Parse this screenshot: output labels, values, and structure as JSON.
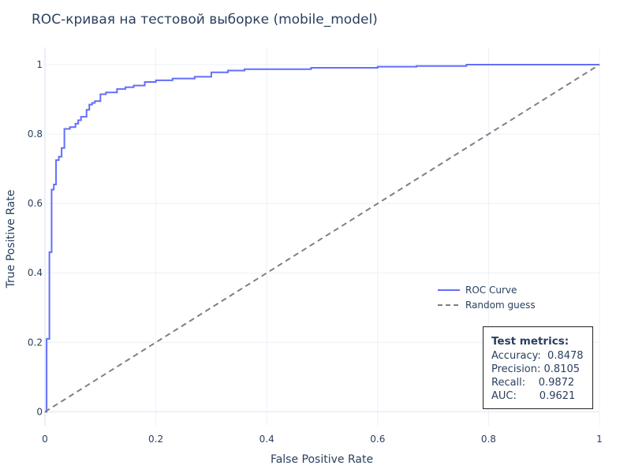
{
  "chart_data": {
    "type": "line",
    "title": "ROC-кривая на тестовой выборке (mobile_model)",
    "xlabel": "False Positive Rate",
    "ylabel": "True Positive Rate",
    "xlim": [
      0,
      1
    ],
    "ylim": [
      -0.04,
      1.05
    ],
    "x_ticks": [
      0,
      0.2,
      0.4,
      0.6,
      0.8,
      1
    ],
    "x_tick_labels": [
      "0",
      "0.2",
      "0.4",
      "0.6",
      "0.8",
      "1"
    ],
    "y_ticks": [
      0,
      0.2,
      0.4,
      0.6,
      0.8,
      1
    ],
    "y_tick_labels": [
      "0",
      "0.2",
      "0.4",
      "0.6",
      "0.8",
      "1"
    ],
    "grid": true,
    "legend_position": "right",
    "series": [
      {
        "name": "ROC Curve",
        "color": "#636efa",
        "style": "step",
        "x": [
          0,
          0.003,
          0.003,
          0.008,
          0.008,
          0.012,
          0.012,
          0.016,
          0.016,
          0.02,
          0.02,
          0.025,
          0.025,
          0.03,
          0.03,
          0.035,
          0.035,
          0.045,
          0.045,
          0.055,
          0.055,
          0.06,
          0.06,
          0.065,
          0.065,
          0.075,
          0.075,
          0.08,
          0.08,
          0.085,
          0.085,
          0.09,
          0.09,
          0.1,
          0.1,
          0.11,
          0.11,
          0.13,
          0.13,
          0.145,
          0.145,
          0.16,
          0.16,
          0.18,
          0.18,
          0.2,
          0.2,
          0.23,
          0.23,
          0.27,
          0.27,
          0.3,
          0.3,
          0.33,
          0.33,
          0.36,
          0.36,
          0.48,
          0.48,
          0.6,
          0.6,
          0.67,
          0.67,
          0.76,
          0.76,
          1.0
        ],
        "y": [
          0,
          0,
          0.21,
          0.21,
          0.46,
          0.46,
          0.64,
          0.64,
          0.655,
          0.655,
          0.725,
          0.725,
          0.735,
          0.735,
          0.76,
          0.76,
          0.815,
          0.815,
          0.82,
          0.82,
          0.83,
          0.83,
          0.84,
          0.84,
          0.85,
          0.85,
          0.87,
          0.87,
          0.885,
          0.885,
          0.89,
          0.89,
          0.895,
          0.895,
          0.915,
          0.915,
          0.92,
          0.92,
          0.93,
          0.93,
          0.935,
          0.935,
          0.94,
          0.94,
          0.95,
          0.95,
          0.955,
          0.955,
          0.96,
          0.96,
          0.965,
          0.965,
          0.978,
          0.978,
          0.983,
          0.983,
          0.987,
          0.987,
          0.991,
          0.991,
          0.994,
          0.994,
          0.996,
          0.996,
          1.0,
          1.0
        ]
      },
      {
        "name": "Random guess",
        "color": "#808080",
        "style": "dash",
        "x": [
          0,
          1
        ],
        "y": [
          0,
          1
        ]
      }
    ],
    "annotation": {
      "title": "Test metrics:",
      "lines": [
        "Accuracy:  0.8478",
        "Precision: 0.8105",
        "Recall:    0.9872",
        "AUC:       0.9621"
      ]
    }
  }
}
